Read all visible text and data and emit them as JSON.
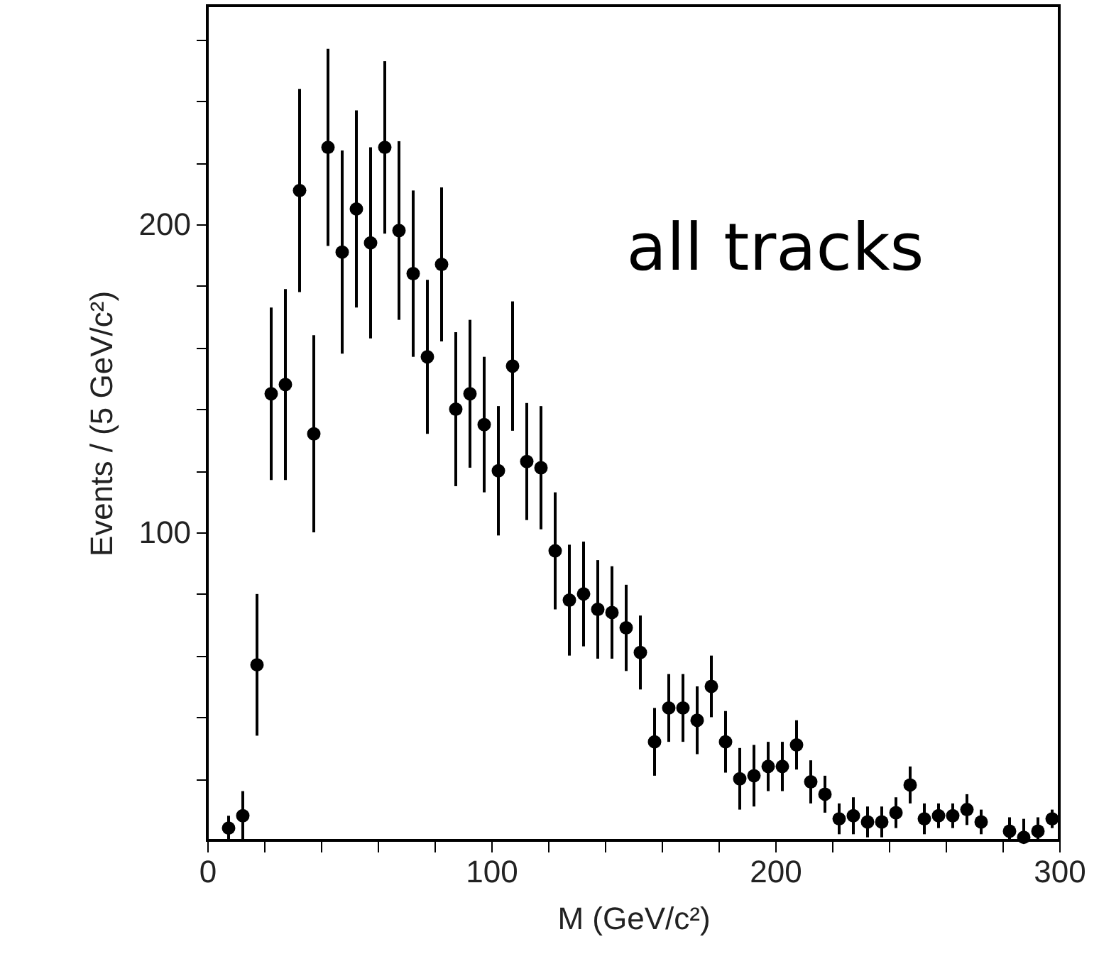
{
  "chart_data": {
    "type": "scatter",
    "xlabel": "M (GeV/c²)",
    "ylabel": "Events / (5 GeV/c²)",
    "annotations": [
      "all tracks"
    ],
    "x": [
      7.5,
      12.5,
      17.5,
      22.5,
      27.5,
      32.5,
      37.5,
      42.5,
      47.5,
      52.5,
      57.5,
      62.5,
      67.5,
      72.5,
      77.5,
      82.5,
      87.5,
      92.5,
      97.5,
      102.5,
      107.5,
      112.5,
      117.5,
      122.5,
      127.5,
      132.5,
      137.5,
      142.5,
      147.5,
      152.5,
      157.5,
      162.5,
      167.5,
      172.5,
      177.5,
      182.5,
      187.5,
      192.5,
      197.5,
      202.5,
      207.5,
      212.5,
      217.5,
      222.5,
      227.5,
      232.5,
      237.5,
      242.5,
      247.5,
      252.5,
      257.5,
      262.5,
      267.5,
      272.5,
      282.5,
      287.5,
      292.5,
      297.5
    ],
    "series": [
      {
        "color": "#000000",
        "values": [
          4,
          8,
          57,
          145,
          148,
          211,
          132,
          225,
          191,
          205,
          194,
          225,
          198,
          184,
          157,
          187,
          140,
          145,
          135,
          120,
          154,
          123,
          121,
          94,
          78,
          80,
          75,
          74,
          69,
          61,
          32,
          43,
          43,
          39,
          50,
          32,
          20,
          21,
          24,
          24,
          31,
          19,
          15,
          7,
          8,
          6,
          6,
          9,
          18,
          7,
          8,
          8,
          10,
          6,
          3,
          1,
          3,
          7
        ],
        "errors": [
          4,
          8,
          23,
          28,
          31,
          33,
          32,
          32,
          33,
          32,
          31,
          28,
          29,
          27,
          25,
          25,
          25,
          24,
          22,
          21,
          21,
          19,
          20,
          19,
          18,
          17,
          16,
          15,
          14,
          12,
          11,
          11,
          11,
          11,
          10,
          10,
          10,
          10,
          8,
          8,
          8,
          7,
          6,
          5,
          6,
          5,
          5,
          5,
          6,
          5,
          4,
          4,
          5,
          4,
          [
            0.3,
            7.5
          ],
          [
            0,
            7
          ],
          [
            0.3,
            7.5
          ],
          3
        ]
      }
    ],
    "marker": "circle",
    "xlim": [
      0,
      300
    ],
    "xticks": [
      0,
      {
        "value": 20,
        "label": null
      },
      {
        "value": 40,
        "label": null
      },
      {
        "value": 60,
        "label": null
      },
      {
        "value": 80,
        "label": null
      },
      100,
      {
        "value": 120,
        "label": null
      },
      {
        "value": 140,
        "label": null
      },
      {
        "value": 160,
        "label": null
      },
      {
        "value": 180,
        "label": null
      },
      200,
      {
        "value": 220,
        "label": null
      },
      {
        "value": 240,
        "label": null
      },
      {
        "value": 260,
        "label": null
      },
      {
        "value": 280,
        "label": null
      },
      300
    ],
    "ylim": [
      0,
      271
    ],
    "yticks": [
      {
        "value": 20,
        "label": null
      },
      {
        "value": 40,
        "label": null
      },
      {
        "value": 60,
        "label": null
      },
      {
        "value": 80,
        "label": null
      },
      100,
      {
        "value": 120,
        "label": null
      },
      {
        "value": 140,
        "label": null
      },
      {
        "value": 160,
        "label": null
      },
      {
        "value": 180,
        "label": null
      },
      200,
      {
        "value": 220,
        "label": null
      },
      {
        "value": 240,
        "label": null
      },
      {
        "value": 260,
        "label": null
      }
    ],
    "grid": false
  }
}
